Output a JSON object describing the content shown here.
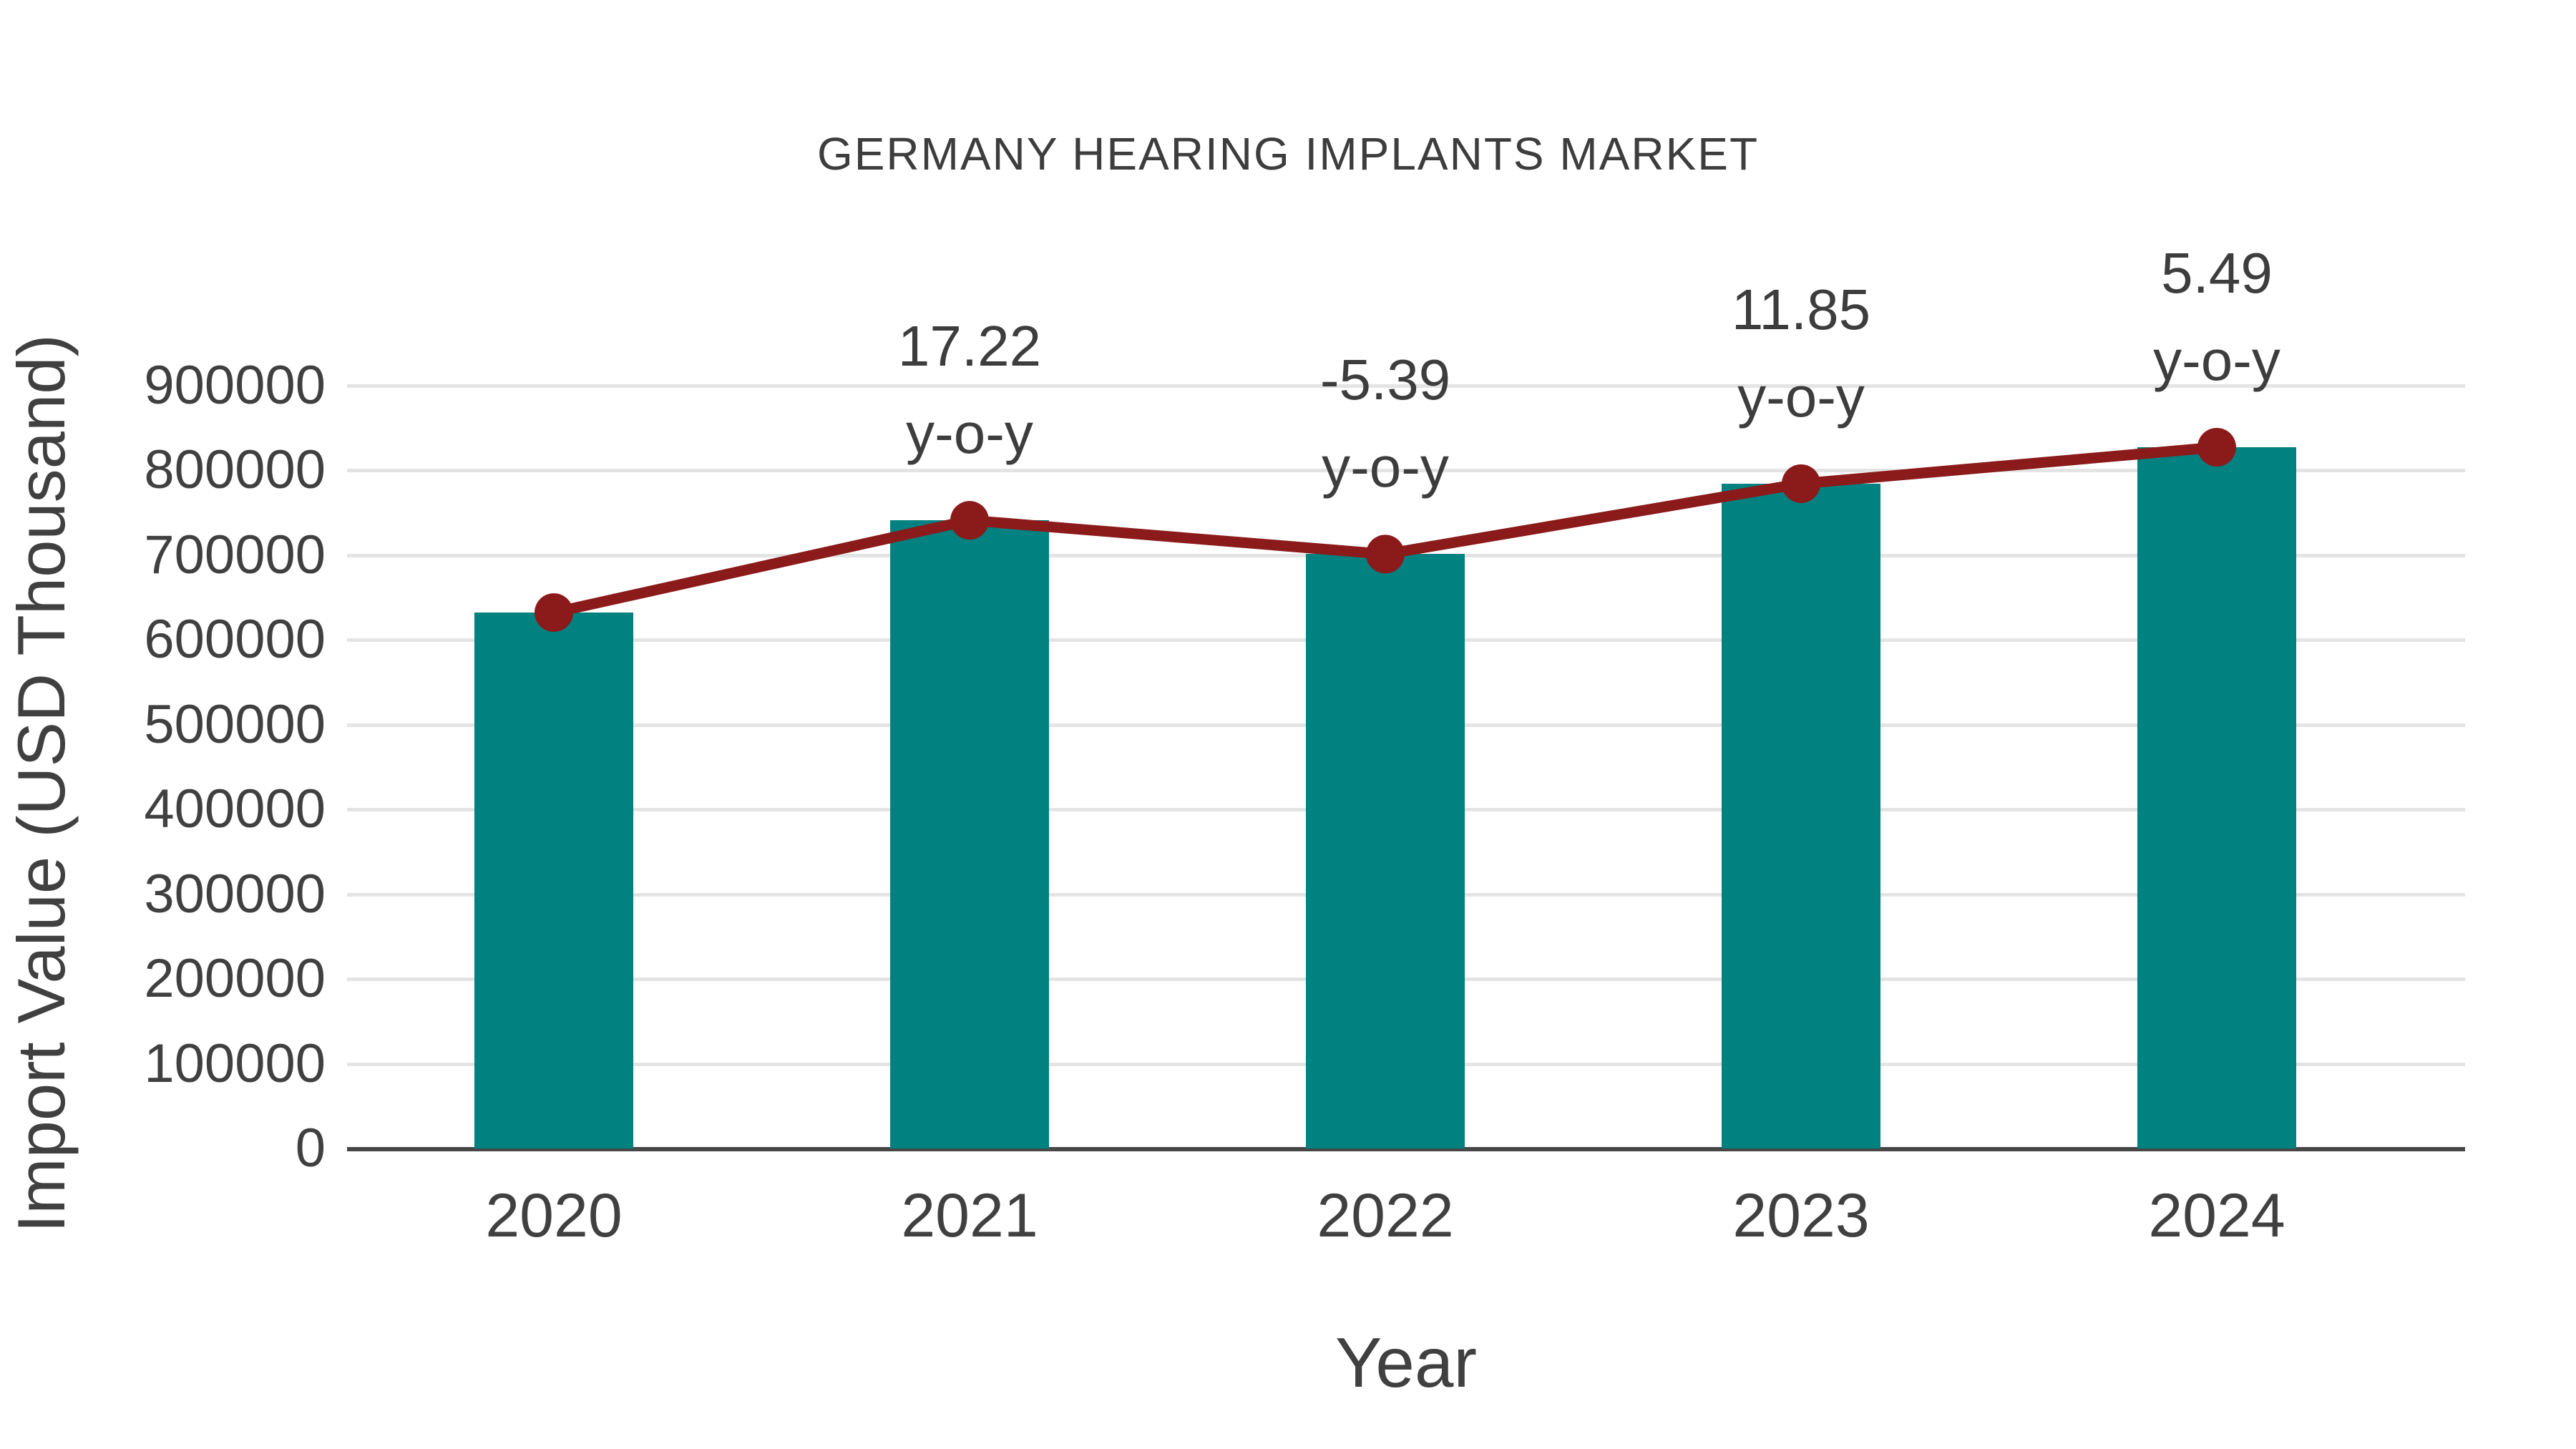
{
  "chart_data": {
    "type": "bar+line",
    "title": "GERMANY HEARING IMPLANTS MARKET",
    "xlabel": "Year",
    "ylabel": "Import Value (USD Thousand)",
    "categories": [
      "2020",
      "2021",
      "2022",
      "2023",
      "2024"
    ],
    "series": [
      {
        "name": "import-value-bars",
        "type": "bar",
        "values": [
          632000,
          740800,
          700900,
          784000,
          827000
        ],
        "color": "#028181"
      },
      {
        "name": "import-value-trend-line",
        "type": "line",
        "values": [
          632000,
          740800,
          700900,
          784000,
          827000
        ],
        "color": "#8b1a1a"
      }
    ],
    "annotations": [
      {
        "category": "2021",
        "line1": "17.22",
        "line2": "y-o-y"
      },
      {
        "category": "2022",
        "line1": "-5.39",
        "line2": "y-o-y"
      },
      {
        "category": "2023",
        "line1": "11.85",
        "line2": "y-o-y"
      },
      {
        "category": "2024",
        "line1": "5.49",
        "line2": "y-o-y"
      }
    ],
    "ylim": [
      0,
      900000
    ],
    "yticks": [
      0,
      100000,
      200000,
      300000,
      400000,
      500000,
      600000,
      700000,
      800000,
      900000
    ],
    "grid": "horizontal-light-gray",
    "legend": "none",
    "colors": {
      "bar": "#028181",
      "line": "#8b1a1a",
      "gridline": "#e4e4e4",
      "axis_line": "#474747",
      "text": "#404040"
    }
  }
}
